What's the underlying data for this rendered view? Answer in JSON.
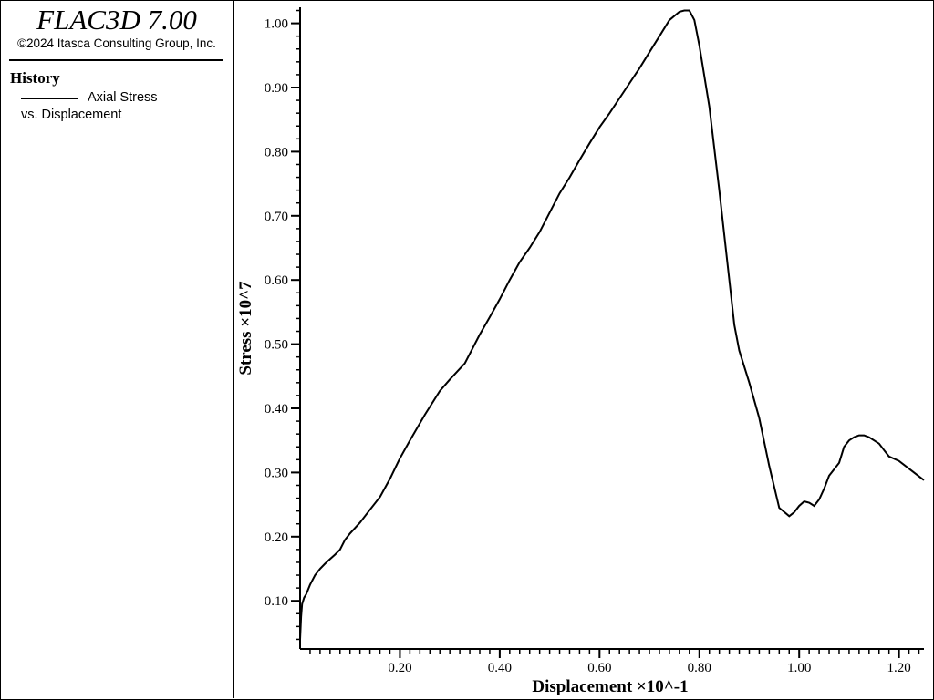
{
  "app": {
    "title": "FLAC3D 7.00",
    "copyright": "©2024 Itasca Consulting Group, Inc."
  },
  "legend": {
    "section_title": "History",
    "series_label_line1": "Axial Stress",
    "series_label_line2": "vs. Displacement"
  },
  "chart_data": {
    "type": "line",
    "xlabel": "Displacement ×10^-1",
    "ylabel": "Stress ×10^7",
    "xlim": [
      0.0,
      1.25
    ],
    "ylim": [
      0.025,
      1.025
    ],
    "x_ticks": [
      0.2,
      0.4,
      0.6,
      0.8,
      1.0,
      1.2
    ],
    "x_tick_labels": [
      "0.20",
      "0.40",
      "0.60",
      "0.80",
      "1.00",
      "1.20"
    ],
    "y_ticks": [
      0.1,
      0.2,
      0.3,
      0.4,
      0.5,
      0.6,
      0.7,
      0.8,
      0.9,
      1.0
    ],
    "y_tick_labels": [
      "0.10",
      "0.20",
      "0.30",
      "0.40",
      "0.50",
      "0.60",
      "0.70",
      "0.80",
      "0.90",
      "1.00"
    ],
    "grid": false,
    "line_color": "#000000",
    "series": [
      {
        "x": [
          0.0,
          0.002,
          0.004,
          0.008,
          0.012,
          0.02,
          0.03,
          0.04,
          0.05,
          0.06,
          0.07,
          0.08,
          0.09,
          0.1,
          0.12,
          0.14,
          0.16,
          0.18,
          0.2,
          0.22,
          0.25,
          0.28,
          0.3,
          0.33,
          0.36,
          0.38,
          0.4,
          0.42,
          0.44,
          0.46,
          0.48,
          0.5,
          0.52,
          0.54,
          0.56,
          0.58,
          0.6,
          0.62,
          0.65,
          0.68,
          0.7,
          0.72,
          0.74,
          0.76,
          0.77,
          0.78,
          0.79,
          0.8,
          0.82,
          0.84,
          0.86,
          0.87,
          0.88,
          0.9,
          0.92,
          0.94,
          0.96,
          0.98,
          0.99,
          1.0,
          1.01,
          1.02,
          1.03,
          1.04,
          1.05,
          1.06,
          1.07,
          1.08,
          1.09,
          1.1,
          1.11,
          1.12,
          1.13,
          1.14,
          1.16,
          1.17,
          1.18,
          1.2,
          1.22,
          1.25
        ],
        "y": [
          0.04,
          0.075,
          0.095,
          0.105,
          0.11,
          0.125,
          0.14,
          0.15,
          0.158,
          0.165,
          0.172,
          0.18,
          0.195,
          0.205,
          0.222,
          0.242,
          0.262,
          0.29,
          0.322,
          0.35,
          0.39,
          0.427,
          0.445,
          0.47,
          0.515,
          0.542,
          0.57,
          0.6,
          0.628,
          0.65,
          0.675,
          0.705,
          0.735,
          0.76,
          0.787,
          0.813,
          0.838,
          0.86,
          0.895,
          0.93,
          0.955,
          0.98,
          1.005,
          1.018,
          1.02,
          1.02,
          1.005,
          0.965,
          0.87,
          0.74,
          0.6,
          0.53,
          0.49,
          0.44,
          0.385,
          0.31,
          0.245,
          0.232,
          0.238,
          0.248,
          0.255,
          0.253,
          0.248,
          0.258,
          0.275,
          0.295,
          0.305,
          0.315,
          0.34,
          0.35,
          0.355,
          0.358,
          0.358,
          0.355,
          0.345,
          0.335,
          0.325,
          0.318,
          0.306,
          0.288
        ]
      }
    ]
  }
}
